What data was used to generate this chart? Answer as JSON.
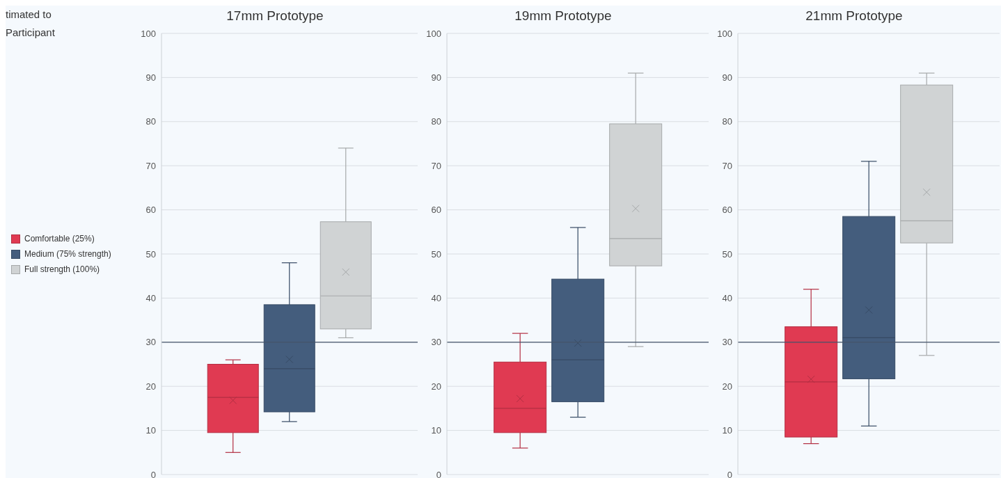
{
  "chart_data": [
    {
      "type": "box",
      "title": "17mm Prototype",
      "categories": [
        null
      ],
      "ylim": [
        0,
        100
      ],
      "yticks": [
        0,
        10,
        20,
        30,
        40,
        50,
        60,
        70,
        80,
        90,
        100
      ],
      "grid": "y",
      "legend": "left",
      "annotations": [
        "timated to",
        "Participant"
      ],
      "ref_lines": [
        {
          "axis": "y",
          "value": 30,
          "color": "#44546a"
        }
      ],
      "series": [
        {
          "name": "Comfortable (25%)",
          "color": "#e03a52",
          "boxes": [
            {
              "low": 5,
              "q1": 9.5,
              "median": 17.5,
              "q3": 25,
              "high": 26,
              "mean": 16.8
            }
          ]
        },
        {
          "name": "Medium (75% strength)",
          "color": "#445d7d",
          "boxes": [
            {
              "low": 12,
              "q1": 14.2,
              "median": 24,
              "q3": 38.5,
              "high": 48,
              "mean": 26.1
            }
          ]
        },
        {
          "name": "Full strength (100%)",
          "color": "#d0d3d4",
          "boxes": [
            {
              "low": 31,
              "q1": 33,
              "median": 40.5,
              "q3": 57.3,
              "high": 74,
              "mean": 45.9
            }
          ]
        }
      ]
    },
    {
      "type": "box",
      "title": "19mm Prototype",
      "categories": [
        null
      ],
      "ylim": [
        0,
        100
      ],
      "yticks": [
        0,
        10,
        20,
        30,
        40,
        50,
        60,
        70,
        80,
        90,
        100
      ],
      "grid": "y",
      "ref_lines": [
        {
          "axis": "y",
          "value": 30,
          "color": "#44546a"
        }
      ],
      "series": [
        {
          "color": "#e03a52",
          "boxes": [
            {
              "low": 6,
              "q1": 9.5,
              "median": 15,
              "q3": 25.5,
              "high": 32,
              "mean": 17.2
            }
          ]
        },
        {
          "color": "#445d7d",
          "boxes": [
            {
              "low": 13,
              "q1": 16.5,
              "median": 26,
              "q3": 44.3,
              "high": 56,
              "mean": 29.8
            }
          ]
        },
        {
          "color": "#d0d3d4",
          "boxes": [
            {
              "low": 29,
              "q1": 47.3,
              "median": 53.5,
              "q3": 79.5,
              "high": 91,
              "mean": 60.3
            }
          ]
        }
      ]
    },
    {
      "type": "box",
      "title": "21mm Prototype",
      "categories": [
        null
      ],
      "ylim": [
        0,
        100
      ],
      "yticks": [
        0,
        10,
        20,
        30,
        40,
        50,
        60,
        70,
        80,
        90,
        100
      ],
      "grid": "y",
      "ref_lines": [
        {
          "axis": "y",
          "value": 30,
          "color": "#44546a"
        }
      ],
      "series": [
        {
          "color": "#e03a52",
          "boxes": [
            {
              "low": 7,
              "q1": 8.5,
              "median": 21,
              "q3": 33.5,
              "high": 42,
              "mean": 21.6
            }
          ]
        },
        {
          "color": "#445d7d",
          "boxes": [
            {
              "low": 11,
              "q1": 21.7,
              "median": 31,
              "q3": 58.5,
              "high": 71,
              "mean": 37.3
            }
          ]
        },
        {
          "color": "#d0d3d4",
          "boxes": [
            {
              "low": 27,
              "q1": 52.5,
              "median": 57.5,
              "q3": 88.3,
              "high": 91,
              "mean": 64
            }
          ]
        }
      ]
    }
  ]
}
